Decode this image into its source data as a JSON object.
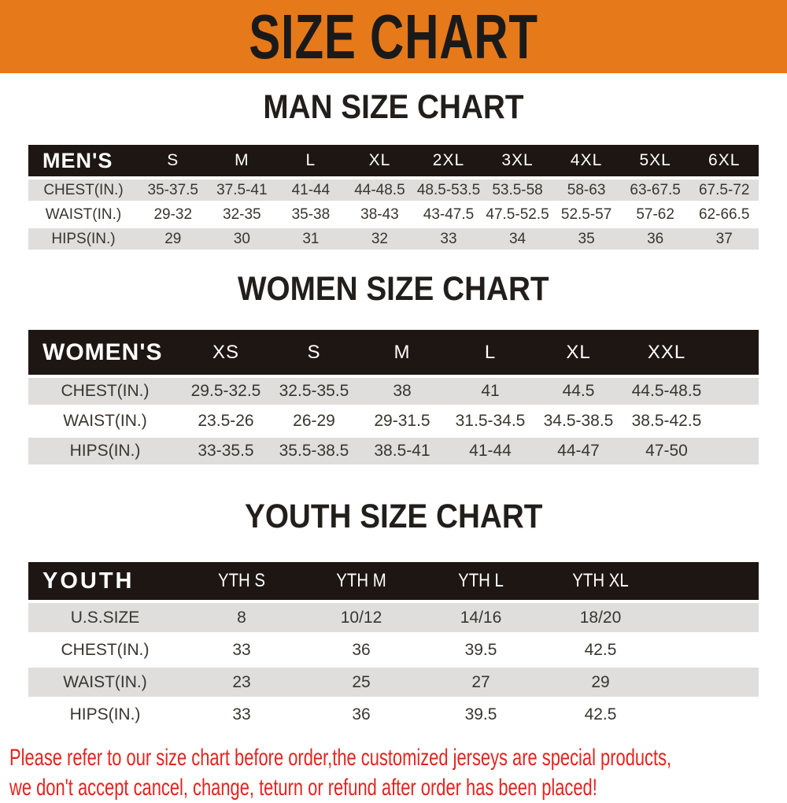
{
  "banner": {
    "title": "SIZE CHART"
  },
  "colors": {
    "banner_bg": "#E6791A",
    "header_bg": "#1D1613",
    "row_gray": "#DFDEDD",
    "disclaimer_red": "#E2241F",
    "title_color": "#1A1A1A"
  },
  "sections": [
    {
      "heading": "MAN SIZE CHART",
      "header_label": "MEN'S",
      "columns": [
        "S",
        "M",
        "L",
        "XL",
        "2XL",
        "3XL",
        "4XL",
        "5XL",
        "6XL"
      ],
      "rows": [
        {
          "label": "CHEST(IN.)",
          "values": [
            "35-37.5",
            "37.5-41",
            "41-44",
            "44-48.5",
            "48.5-53.5",
            "53.5-58",
            "58-63",
            "63-67.5",
            "67.5-72"
          ]
        },
        {
          "label": "WAIST(IN.)",
          "values": [
            "29-32",
            "32-35",
            "35-38",
            "38-43",
            "43-47.5",
            "47.5-52.5",
            "52.5-57",
            "57-62",
            "62-66.5"
          ]
        },
        {
          "label": "HIPS(IN.)",
          "values": [
            "29",
            "30",
            "31",
            "32",
            "33",
            "34",
            "35",
            "36",
            "37"
          ]
        }
      ]
    },
    {
      "heading": "WOMEN SIZE CHART",
      "header_label": "WOMEN'S",
      "columns": [
        "XS",
        "S",
        "M",
        "L",
        "XL",
        "XXL"
      ],
      "rows": [
        {
          "label": "CHEST(IN.)",
          "values": [
            "29.5-32.5",
            "32.5-35.5",
            "38",
            "41",
            "44.5",
            "44.5-48.5"
          ]
        },
        {
          "label": "WAIST(IN.)",
          "values": [
            "23.5-26",
            "26-29",
            "29-31.5",
            "31.5-34.5",
            "34.5-38.5",
            "38.5-42.5"
          ]
        },
        {
          "label": "HIPS(IN.)",
          "values": [
            "33-35.5",
            "35.5-38.5",
            "38.5-41",
            "41-44",
            "44-47",
            "47-50"
          ]
        }
      ]
    },
    {
      "heading": "YOUTH SIZE CHART",
      "header_label": "YOUTH",
      "columns": [
        "YTH S",
        "YTH M",
        "YTH L",
        "YTH XL"
      ],
      "rows": [
        {
          "label": "U.S.SIZE",
          "values": [
            "8",
            "10/12",
            "14/16",
            "18/20"
          ]
        },
        {
          "label": "CHEST(IN.)",
          "values": [
            "33",
            "36",
            "39.5",
            "42.5"
          ]
        },
        {
          "label": "WAIST(IN.)",
          "values": [
            "23",
            "25",
            "27",
            "29"
          ]
        },
        {
          "label": "HIPS(IN.)",
          "values": [
            "33",
            "36",
            "39.5",
            "42.5"
          ]
        }
      ]
    }
  ],
  "disclaimer": {
    "line1": "Please refer to our size chart before order,the customized jerseys are special products,",
    "line2": "we don't accept cancel, change, teturn or refund after order has been placed!"
  }
}
